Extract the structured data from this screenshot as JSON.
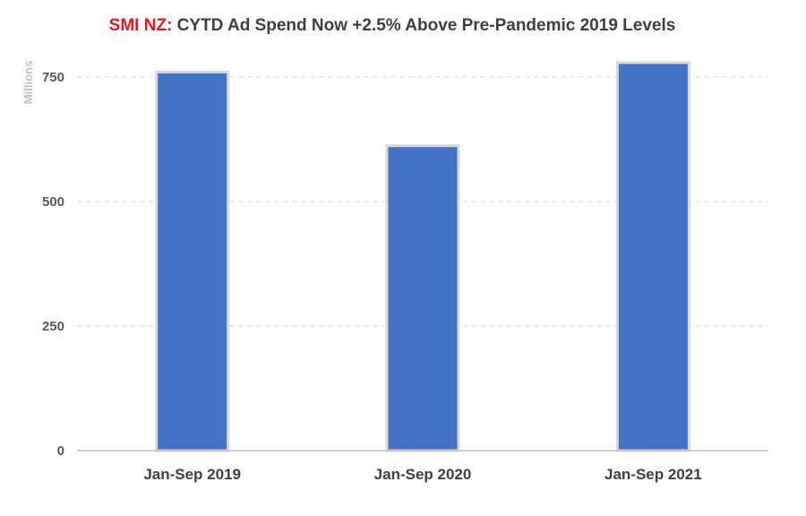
{
  "chart_data": {
    "type": "bar",
    "title_brand": "SMI NZ:",
    "title": "CYTD Ad Spend Now +2.5% Above Pre-Pandemic 2019 Levels",
    "ylabel": "Millions",
    "xlabel": "",
    "categories": [
      "Jan-Sep 2019",
      "Jan-Sep 2020",
      "Jan-Sep 2021"
    ],
    "values": [
      760,
      612,
      779
    ],
    "yticks": [
      0,
      250,
      500,
      750
    ],
    "ylim": [
      0,
      800
    ],
    "grid": true,
    "legend": "none",
    "colors": {
      "bar": "#4472c4",
      "bar_outline": "#d9d9d9",
      "grid": "#d9d9d9",
      "axis": "#bfbfbf",
      "brand": "#e8141b"
    }
  }
}
